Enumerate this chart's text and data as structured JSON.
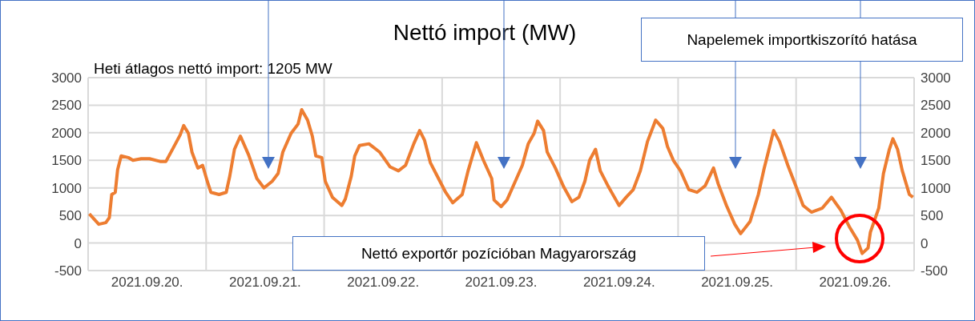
{
  "chart_data": {
    "type": "line",
    "title": "Nettó import (MW)",
    "annotations": [
      "Heti átlagos nettó import: 1205 MW",
      "Napelemek importkiszorító hatása",
      "Nettó exportőr pozícióban Magyarország"
    ],
    "x": [
      "2021-09-20T00:14",
      "2021-09-20T02:10",
      "2021-09-20T03:36",
      "2021-09-20T04:19",
      "2021-09-20T04:48",
      "2021-09-20T05:31",
      "2021-09-20T06:00",
      "2021-09-20T06:43",
      "2021-09-20T08:10",
      "2021-09-20T09:07",
      "2021-09-20T10:48",
      "2021-09-20T12:29",
      "2021-09-20T14:38",
      "2021-09-20T15:50",
      "2021-09-20T17:17",
      "2021-09-20T18:43",
      "2021-09-20T19:26",
      "2021-09-20T20:24",
      "2021-09-20T21:07",
      "2021-09-20T22:19",
      "2021-09-20T23:17",
      "2021-09-21T00:14",
      "2021-09-21T00:58",
      "2021-09-21T02:38",
      "2021-09-21T04:05",
      "2021-09-21T04:48",
      "2021-09-21T05:46",
      "2021-09-21T06:58",
      "2021-09-21T08:38",
      "2021-09-21T10:19",
      "2021-09-21T11:46",
      "2021-09-21T13:26",
      "2021-09-21T14:38",
      "2021-09-21T15:36",
      "2021-09-21T17:17",
      "2021-09-21T18:43",
      "2021-09-21T19:26",
      "2021-09-21T20:38",
      "2021-09-21T21:36",
      "2021-09-21T22:19",
      "2021-09-21T23:31",
      "2021-09-22T00:14",
      "2021-09-22T01:41",
      "2021-09-22T03:36",
      "2021-09-22T04:19",
      "2021-09-22T05:31",
      "2021-09-22T06:14",
      "2021-09-22T07:12",
      "2021-09-22T09:07",
      "2021-09-22T10:34",
      "2021-09-22T11:17",
      "2021-09-22T13:26",
      "2021-09-22T15:07",
      "2021-09-22T16:34",
      "2021-09-22T18:14",
      "2021-09-22T19:26",
      "2021-09-22T20:24",
      "2021-09-22T21:36",
      "2021-09-22T23:02",
      "2021-09-23T00:43",
      "2021-09-23T02:10",
      "2021-09-23T04:05",
      "2021-09-23T05:17",
      "2021-09-23T06:58",
      "2021-09-23T08:24",
      "2021-09-23T10:05",
      "2021-09-23T10:34",
      "2021-09-23T12:00",
      "2021-09-23T13:12",
      "2021-09-23T14:53",
      "2021-09-23T16:19",
      "2021-09-23T17:31",
      "2021-09-23T18:43",
      "2021-09-23T19:26",
      "2021-09-23T20:38",
      "2021-09-23T21:22",
      "2021-09-23T23:02",
      "2021-09-24T00:43",
      "2021-09-24T02:24",
      "2021-09-24T03:50",
      "2021-09-24T05:02",
      "2021-09-24T06:00",
      "2021-09-24T07:12",
      "2021-09-24T08:10",
      "2021-09-24T09:50",
      "2021-09-24T12:00",
      "2021-09-24T13:26",
      "2021-09-24T14:53",
      "2021-09-24T16:19",
      "2021-09-24T17:46",
      "2021-09-24T19:26",
      "2021-09-24T20:53",
      "2021-09-24T21:50",
      "2021-09-24T23:02",
      "2021-09-25T00:29",
      "2021-09-25T02:10",
      "2021-09-25T03:50",
      "2021-09-25T05:31",
      "2021-09-25T07:12",
      "2021-09-25T08:10",
      "2021-09-25T09:50",
      "2021-09-25T11:31",
      "2021-09-25T12:43",
      "2021-09-25T14:38",
      "2021-09-25T16:19",
      "2021-09-25T17:31",
      "2021-09-25T18:29",
      "2021-09-25T19:26",
      "2021-09-25T20:38",
      "2021-09-25T22:19",
      "2021-09-26T00:00",
      "2021-09-26T01:26",
      "2021-09-26T03:07",
      "2021-09-26T05:17",
      "2021-09-26T07:12",
      "2021-09-26T09:07",
      "2021-09-26T10:48",
      "2021-09-26T12:29",
      "2021-09-26T13:26",
      "2021-09-26T14:38",
      "2021-09-26T15:07",
      "2021-09-26T16:48",
      "2021-09-26T17:46",
      "2021-09-26T18:58",
      "2021-09-26T19:41",
      "2021-09-26T20:38",
      "2021-09-26T21:36",
      "2021-09-26T23:02",
      "2021-09-26T23:46"
    ],
    "series": [
      {
        "color": "#ed7d31",
        "values": [
          530,
          340,
          370,
          460,
          880,
          920,
          1330,
          1580,
          1550,
          1500,
          1530,
          1530,
          1480,
          1480,
          1720,
          1960,
          2130,
          1990,
          1650,
          1360,
          1410,
          1120,
          920,
          880,
          920,
          1210,
          1700,
          1940,
          1600,
          1170,
          1000,
          1120,
          1260,
          1650,
          1990,
          2160,
          2420,
          2230,
          1940,
          1580,
          1550,
          1120,
          830,
          680,
          800,
          1210,
          1580,
          1770,
          1800,
          1700,
          1650,
          1380,
          1310,
          1410,
          1800,
          2040,
          1870,
          1460,
          1210,
          920,
          730,
          880,
          1310,
          1820,
          1500,
          1170,
          780,
          660,
          780,
          1120,
          1410,
          1800,
          1990,
          2210,
          2040,
          1650,
          1360,
          1020,
          750,
          830,
          1120,
          1500,
          1700,
          1310,
          1020,
          680,
          830,
          970,
          1310,
          1840,
          2230,
          2080,
          1750,
          1500,
          1310,
          970,
          920,
          1040,
          1360,
          1070,
          680,
          340,
          170,
          390,
          880,
          1360,
          1700,
          2040,
          1840,
          1410,
          1020,
          680,
          560,
          630,
          830,
          590,
          300,
          50,
          -190,
          -90,
          200,
          630,
          1260,
          1700,
          1890,
          1700,
          1310,
          880,
          830
        ]
      }
    ],
    "xlim": [
      "2021-09-20T00:00",
      "2021-09-27T00:00"
    ],
    "xticks": [
      {
        "value": "2021-09-20T00:00",
        "label": null
      },
      {
        "value": "2021-09-20T12:00",
        "label": "2021.09.20."
      },
      {
        "value": "2021-09-21T00:00",
        "label": null
      },
      {
        "value": "2021-09-21T12:00",
        "label": "2021.09.21."
      },
      {
        "value": "2021-09-22T00:00",
        "label": null
      },
      {
        "value": "2021-09-22T12:00",
        "label": "2021.09.22."
      },
      {
        "value": "2021-09-23T00:00",
        "label": null
      },
      {
        "value": "2021-09-23T12:00",
        "label": "2021.09.23."
      },
      {
        "value": "2021-09-24T00:00",
        "label": null
      },
      {
        "value": "2021-09-24T12:00",
        "label": "2021.09.24."
      },
      {
        "value": "2021-09-25T00:00",
        "label": null
      },
      {
        "value": "2021-09-25T12:00",
        "label": "2021.09.25."
      },
      {
        "value": "2021-09-26T00:00",
        "label": null
      },
      {
        "value": "2021-09-26T12:00",
        "label": "2021.09.26."
      },
      {
        "value": "2021-09-27T00:00",
        "label": null
      }
    ],
    "ylim": [
      -500,
      3000
    ],
    "yticks": [
      -500,
      0,
      500,
      1000,
      1500,
      2000,
      2500,
      3000
    ],
    "y2lim": [
      -500,
      3000
    ],
    "y2ticks": [
      -500,
      0,
      500,
      1000,
      1500,
      2000,
      2500,
      3000
    ],
    "grid": true,
    "legend": false,
    "marker": "none",
    "line_style": "solid"
  }
}
